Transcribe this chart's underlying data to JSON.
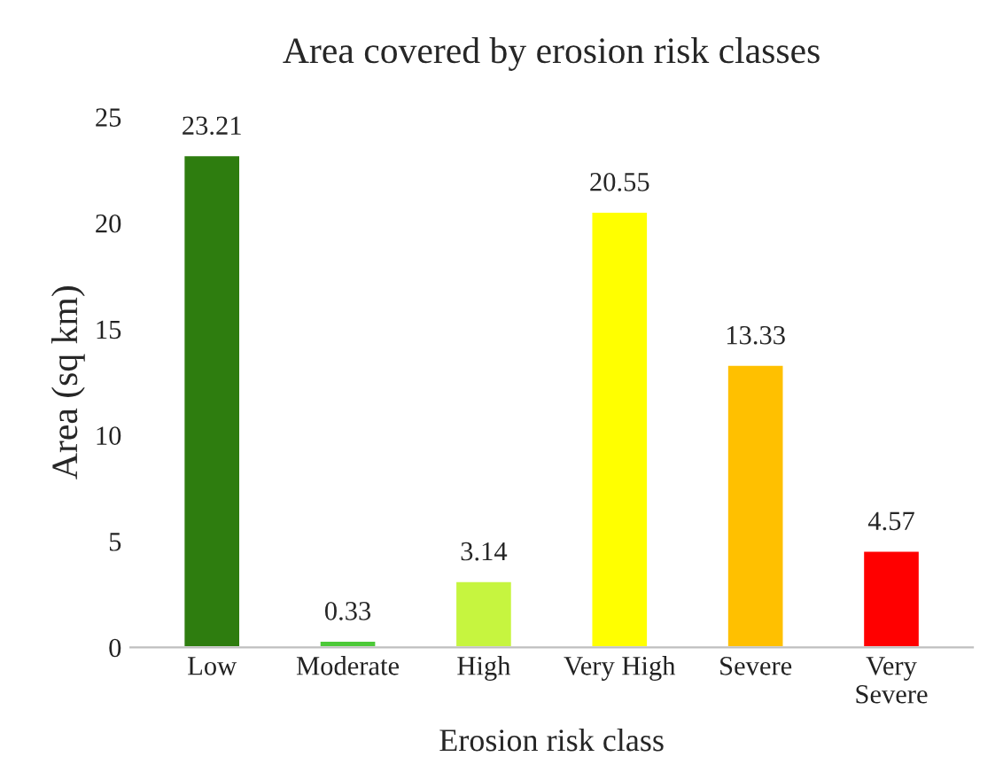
{
  "chart_data": {
    "type": "bar",
    "title": "Area covered by erosion risk classes",
    "xlabel": "Erosion risk class",
    "ylabel": "Area (sq km)",
    "categories": [
      "Low",
      "Moderate",
      "High",
      "Very High",
      "Severe",
      "Very\nSevere"
    ],
    "values": [
      23.21,
      0.33,
      3.14,
      20.55,
      13.33,
      4.57
    ],
    "colors": [
      "#2e7d0f",
      "#4cc938",
      "#c6f53f",
      "#ffff00",
      "#ffc000",
      "#ff0000"
    ],
    "ylim": [
      0,
      25
    ],
    "yticks": [
      0,
      5,
      10,
      15,
      20,
      25
    ],
    "grid": false,
    "data_labels": true
  }
}
